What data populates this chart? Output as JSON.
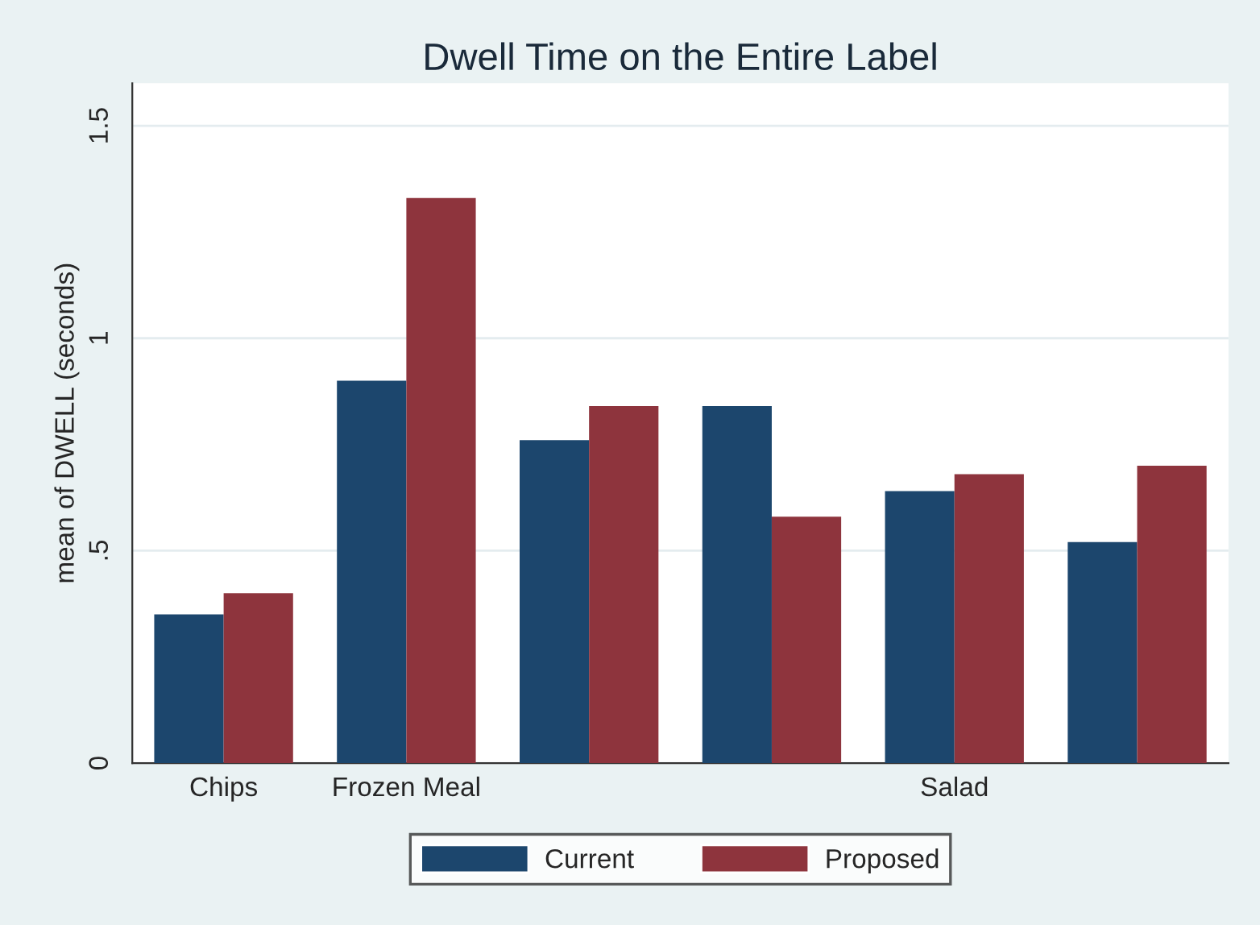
{
  "chart_data": {
    "type": "bar",
    "title": "Dwell Time on the Entire Label",
    "ylabel": "mean of DWELL (seconds)",
    "categories": [
      "Chips",
      "Frozen Meal",
      null,
      null,
      "Salad",
      null
    ],
    "series": [
      {
        "name": "Current",
        "color": "#1c466d",
        "values": [
          0.35,
          0.9,
          0.76,
          0.84,
          0.64,
          0.52
        ]
      },
      {
        "name": "Proposed",
        "color": "#8e343d",
        "values": [
          0.4,
          1.33,
          0.84,
          0.58,
          0.68,
          0.7
        ]
      }
    ],
    "ylim": [
      0,
      1.6
    ],
    "yticks": [
      0,
      {
        "value": 0.5,
        "label": ".5"
      },
      1,
      1.5
    ],
    "grid": "y",
    "legend": "bottom"
  }
}
